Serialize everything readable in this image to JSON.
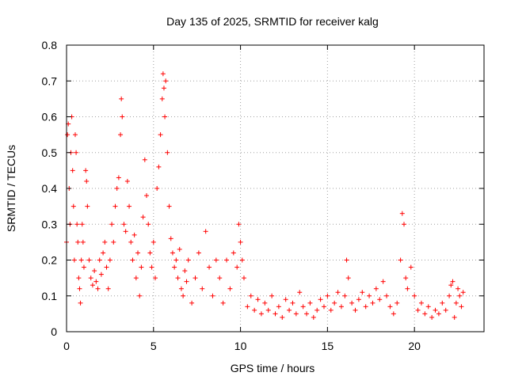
{
  "chart_data": {
    "type": "scatter",
    "title": "Day 135 of 2025, SRMTID for receiver kalg",
    "xlabel": "GPS time / hours",
    "ylabel": "SRMTID / TECUs",
    "xlim": [
      0,
      24
    ],
    "ylim": [
      0,
      0.8
    ],
    "xticks": [
      0,
      5,
      10,
      15,
      20
    ],
    "yticks": [
      0,
      0.1,
      0.2,
      0.3,
      0.4,
      0.5,
      0.6,
      0.7,
      0.8
    ],
    "xtick_labels": [
      "0",
      "5",
      "10",
      "15",
      "20"
    ],
    "ytick_labels": [
      "0",
      "0.1",
      "0.2",
      "0.3",
      "0.4",
      "0.5",
      "0.6",
      "0.7",
      "0.8"
    ],
    "grid": true,
    "marker": "+",
    "color": "#ff0000",
    "series": [
      {
        "name": "SRMTID",
        "points": [
          [
            0.0,
            0.25
          ],
          [
            0.05,
            0.55
          ],
          [
            0.1,
            0.58
          ],
          [
            0.15,
            0.4
          ],
          [
            0.2,
            0.3
          ],
          [
            0.25,
            0.5
          ],
          [
            0.3,
            0.6
          ],
          [
            0.35,
            0.45
          ],
          [
            0.4,
            0.35
          ],
          [
            0.45,
            0.2
          ],
          [
            0.5,
            0.55
          ],
          [
            0.55,
            0.5
          ],
          [
            0.6,
            0.3
          ],
          [
            0.65,
            0.25
          ],
          [
            0.7,
            0.15
          ],
          [
            0.75,
            0.12
          ],
          [
            0.8,
            0.08
          ],
          [
            0.85,
            0.2
          ],
          [
            0.9,
            0.3
          ],
          [
            0.95,
            0.25
          ],
          [
            1.0,
            0.18
          ],
          [
            1.1,
            0.45
          ],
          [
            1.15,
            0.42
          ],
          [
            1.2,
            0.35
          ],
          [
            1.3,
            0.2
          ],
          [
            1.4,
            0.15
          ],
          [
            1.5,
            0.13
          ],
          [
            1.6,
            0.17
          ],
          [
            1.7,
            0.14
          ],
          [
            1.8,
            0.12
          ],
          [
            1.9,
            0.2
          ],
          [
            2.0,
            0.16
          ],
          [
            2.1,
            0.22
          ],
          [
            2.2,
            0.25
          ],
          [
            2.3,
            0.18
          ],
          [
            2.4,
            0.12
          ],
          [
            2.5,
            0.2
          ],
          [
            2.6,
            0.3
          ],
          [
            2.7,
            0.25
          ],
          [
            2.8,
            0.35
          ],
          [
            2.9,
            0.4
          ],
          [
            3.0,
            0.43
          ],
          [
            3.1,
            0.55
          ],
          [
            3.15,
            0.65
          ],
          [
            3.2,
            0.6
          ],
          [
            3.3,
            0.3
          ],
          [
            3.4,
            0.28
          ],
          [
            3.5,
            0.42
          ],
          [
            3.6,
            0.35
          ],
          [
            3.7,
            0.25
          ],
          [
            3.8,
            0.2
          ],
          [
            3.9,
            0.27
          ],
          [
            4.0,
            0.15
          ],
          [
            4.1,
            0.22
          ],
          [
            4.2,
            0.1
          ],
          [
            4.3,
            0.18
          ],
          [
            4.4,
            0.32
          ],
          [
            4.5,
            0.48
          ],
          [
            4.6,
            0.38
          ],
          [
            4.7,
            0.3
          ],
          [
            4.8,
            0.22
          ],
          [
            4.9,
            0.18
          ],
          [
            5.0,
            0.25
          ],
          [
            5.1,
            0.15
          ],
          [
            5.2,
            0.4
          ],
          [
            5.3,
            0.46
          ],
          [
            5.4,
            0.55
          ],
          [
            5.5,
            0.65
          ],
          [
            5.55,
            0.72
          ],
          [
            5.6,
            0.68
          ],
          [
            5.65,
            0.6
          ],
          [
            5.7,
            0.7
          ],
          [
            5.8,
            0.5
          ],
          [
            5.9,
            0.35
          ],
          [
            6.0,
            0.26
          ],
          [
            6.1,
            0.22
          ],
          [
            6.2,
            0.18
          ],
          [
            6.3,
            0.2
          ],
          [
            6.4,
            0.15
          ],
          [
            6.5,
            0.23
          ],
          [
            6.6,
            0.12
          ],
          [
            6.7,
            0.1
          ],
          [
            6.8,
            0.17
          ],
          [
            6.9,
            0.14
          ],
          [
            7.0,
            0.2
          ],
          [
            7.2,
            0.08
          ],
          [
            7.4,
            0.15
          ],
          [
            7.6,
            0.22
          ],
          [
            7.8,
            0.12
          ],
          [
            8.0,
            0.28
          ],
          [
            8.2,
            0.18
          ],
          [
            8.4,
            0.1
          ],
          [
            8.6,
            0.2
          ],
          [
            8.8,
            0.15
          ],
          [
            9.0,
            0.08
          ],
          [
            9.2,
            0.2
          ],
          [
            9.4,
            0.12
          ],
          [
            9.6,
            0.22
          ],
          [
            9.8,
            0.18
          ],
          [
            9.9,
            0.3
          ],
          [
            10.0,
            0.25
          ],
          [
            10.1,
            0.2
          ],
          [
            10.2,
            0.15
          ],
          [
            10.4,
            0.07
          ],
          [
            10.6,
            0.1
          ],
          [
            10.8,
            0.06
          ],
          [
            11.0,
            0.09
          ],
          [
            11.2,
            0.05
          ],
          [
            11.4,
            0.08
          ],
          [
            11.6,
            0.06
          ],
          [
            11.8,
            0.1
          ],
          [
            12.0,
            0.05
          ],
          [
            12.2,
            0.07
          ],
          [
            12.4,
            0.04
          ],
          [
            12.6,
            0.09
          ],
          [
            12.8,
            0.06
          ],
          [
            13.0,
            0.08
          ],
          [
            13.2,
            0.05
          ],
          [
            13.4,
            0.11
          ],
          [
            13.6,
            0.07
          ],
          [
            13.8,
            0.05
          ],
          [
            14.0,
            0.08
          ],
          [
            14.2,
            0.04
          ],
          [
            14.4,
            0.06
          ],
          [
            14.6,
            0.09
          ],
          [
            14.8,
            0.07
          ],
          [
            15.0,
            0.1
          ],
          [
            15.2,
            0.06
          ],
          [
            15.4,
            0.08
          ],
          [
            15.6,
            0.11
          ],
          [
            15.8,
            0.07
          ],
          [
            16.0,
            0.1
          ],
          [
            16.1,
            0.2
          ],
          [
            16.2,
            0.15
          ],
          [
            16.4,
            0.08
          ],
          [
            16.6,
            0.06
          ],
          [
            16.8,
            0.09
          ],
          [
            17.0,
            0.11
          ],
          [
            17.2,
            0.07
          ],
          [
            17.4,
            0.1
          ],
          [
            17.6,
            0.08
          ],
          [
            17.8,
            0.12
          ],
          [
            18.0,
            0.09
          ],
          [
            18.2,
            0.14
          ],
          [
            18.4,
            0.1
          ],
          [
            18.6,
            0.07
          ],
          [
            18.8,
            0.05
          ],
          [
            19.0,
            0.08
          ],
          [
            19.2,
            0.2
          ],
          [
            19.3,
            0.33
          ],
          [
            19.4,
            0.3
          ],
          [
            19.5,
            0.15
          ],
          [
            19.6,
            0.12
          ],
          [
            19.8,
            0.18
          ],
          [
            20.0,
            0.1
          ],
          [
            20.2,
            0.06
          ],
          [
            20.4,
            0.08
          ],
          [
            20.6,
            0.05
          ],
          [
            20.8,
            0.07
          ],
          [
            21.0,
            0.04
          ],
          [
            21.2,
            0.06
          ],
          [
            21.4,
            0.05
          ],
          [
            21.6,
            0.08
          ],
          [
            21.8,
            0.06
          ],
          [
            22.0,
            0.1
          ],
          [
            22.1,
            0.13
          ],
          [
            22.2,
            0.14
          ],
          [
            22.3,
            0.04
          ],
          [
            22.4,
            0.08
          ],
          [
            22.5,
            0.12
          ],
          [
            22.6,
            0.1
          ],
          [
            22.7,
            0.07
          ],
          [
            22.8,
            0.11
          ]
        ]
      }
    ]
  }
}
